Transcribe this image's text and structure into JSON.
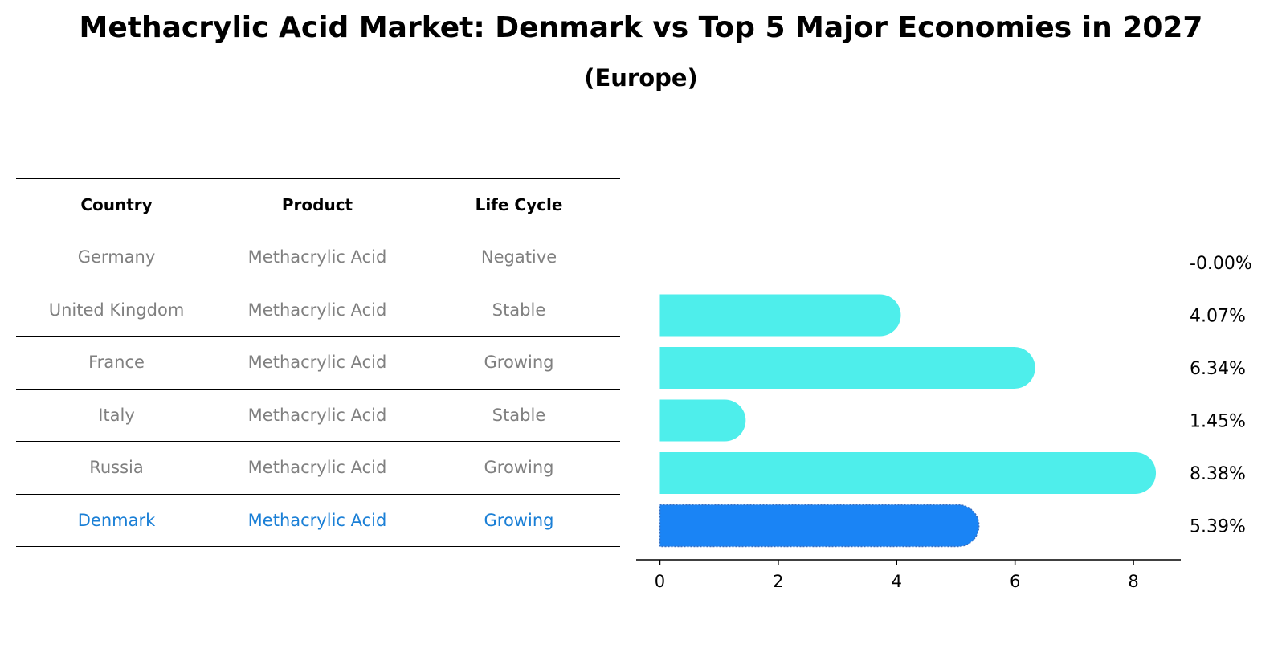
{
  "title": "Methacrylic Acid Market: Denmark vs Top 5 Major Economies in 2027",
  "subtitle": "(Europe)",
  "table": {
    "headers": [
      "Country",
      "Product",
      "Life Cycle"
    ],
    "rows": [
      [
        "Germany",
        "Methacrylic Acid",
        "Negative"
      ],
      [
        "United Kingdom",
        "Methacrylic Acid",
        "Stable"
      ],
      [
        "France",
        "Methacrylic Acid",
        "Growing"
      ],
      [
        "Italy",
        "Methacrylic Acid",
        "Stable"
      ],
      [
        "Russia",
        "Methacrylic Acid",
        "Growing"
      ],
      [
        "Denmark",
        "Methacrylic Acid",
        "Growing"
      ]
    ],
    "highlight_color": "#1a7fd6",
    "text_color": "#808080"
  },
  "chart_data": {
    "type": "bar",
    "orientation": "horizontal",
    "categories": [
      "Germany",
      "United Kingdom",
      "France",
      "Italy",
      "Russia",
      "Denmark"
    ],
    "values": [
      -0.0,
      4.07,
      6.34,
      1.45,
      8.38,
      5.39
    ],
    "value_labels": [
      "-0.00%",
      "4.07%",
      "6.34%",
      "1.45%",
      "8.38%",
      "5.39%"
    ],
    "xlim": [
      -0.4,
      8.8
    ],
    "xticks": [
      0,
      2,
      4,
      6,
      8
    ],
    "xtick_labels": [
      "0",
      "2",
      "4",
      "6",
      "8"
    ],
    "bar_color": "#4eeeeb",
    "highlight_color": "#1a84f5",
    "highlight_category": "Denmark",
    "grid": false
  }
}
